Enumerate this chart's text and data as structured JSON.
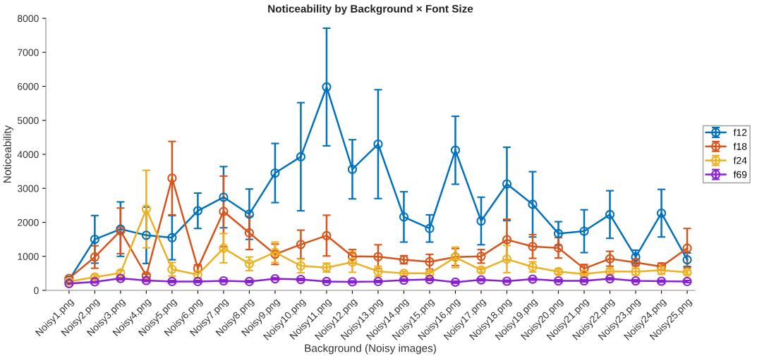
{
  "chart_data": {
    "type": "line",
    "title": "Noticeability by Background × Font Size",
    "xlabel": "Background (Noisy images)",
    "ylabel": "Noticeability",
    "categories": [
      "Noisy1.png",
      "Noisy2.png",
      "Noisy3.png",
      "Noisy4.png",
      "Noisy5.png",
      "Noisy6.png",
      "Noisy7.png",
      "Noisy8.png",
      "Noisy9.png",
      "Noisy10.png",
      "Noisy11.png",
      "Noisy12.png",
      "Noisy13.png",
      "Noisy14.png",
      "Noisy15.png",
      "Noisy16.png",
      "Noisy17.png",
      "Noisy18.png",
      "Noisy19.png",
      "Noisy20.png",
      "Noisy21.png",
      "Noisy22.png",
      "Noisy23.png",
      "Noisy24.png",
      "Noisy25.png"
    ],
    "series": [
      {
        "name": "f12",
        "color": "#0072bd",
        "values": [
          300,
          1500,
          1800,
          1620,
          1550,
          2340,
          2740,
          2240,
          3450,
          3930,
          5980,
          3560,
          4300,
          2160,
          1820,
          4120,
          2040,
          3130,
          2530,
          1670,
          1740,
          2230,
          980,
          2270,
          900
        ],
        "errors": [
          80,
          700,
          800,
          830,
          650,
          520,
          900,
          740,
          870,
          1590,
          1730,
          870,
          1600,
          740,
          400,
          1000,
          700,
          1080,
          960,
          350,
          630,
          700,
          200,
          700,
          200
        ]
      },
      {
        "name": "f18",
        "color": "#d95319",
        "values": [
          350,
          980,
          1750,
          430,
          3300,
          650,
          2320,
          1690,
          1060,
          1350,
          1610,
          1000,
          990,
          900,
          840,
          980,
          1000,
          1490,
          1290,
          1250,
          640,
          930,
          820,
          700,
          1240
        ],
        "errors": [
          50,
          330,
          670,
          50,
          1080,
          100,
          1040,
          490,
          300,
          420,
          600,
          200,
          350,
          120,
          220,
          250,
          200,
          600,
          350,
          300,
          120,
          220,
          100,
          100,
          580
        ]
      },
      {
        "name": "f24",
        "color": "#edb120",
        "values": [
          260,
          390,
          510,
          2390,
          620,
          460,
          1240,
          780,
          1120,
          720,
          670,
          830,
          560,
          500,
          500,
          970,
          600,
          920,
          690,
          550,
          480,
          560,
          550,
          590,
          530
        ],
        "errors": [
          40,
          60,
          70,
          1140,
          200,
          100,
          430,
          200,
          300,
          200,
          130,
          300,
          150,
          60,
          60,
          300,
          70,
          400,
          150,
          70,
          40,
          70,
          100,
          120,
          60
        ]
      },
      {
        "name": "f69",
        "color": "#8a1fd6",
        "values": [
          200,
          250,
          350,
          290,
          260,
          260,
          280,
          260,
          340,
          320,
          260,
          250,
          260,
          300,
          320,
          240,
          310,
          270,
          330,
          280,
          280,
          340,
          280,
          270,
          260
        ],
        "errors": [
          30,
          30,
          40,
          30,
          30,
          30,
          30,
          30,
          30,
          30,
          30,
          30,
          30,
          30,
          30,
          30,
          30,
          30,
          30,
          30,
          30,
          30,
          30,
          30,
          30
        ]
      }
    ],
    "ylim": [
      0,
      8000
    ],
    "yticks": [
      0,
      1000,
      2000,
      3000,
      4000,
      5000,
      6000,
      7000,
      8000
    ],
    "grid": false,
    "legend": "right",
    "marker": "circle",
    "line_style": "solid"
  }
}
